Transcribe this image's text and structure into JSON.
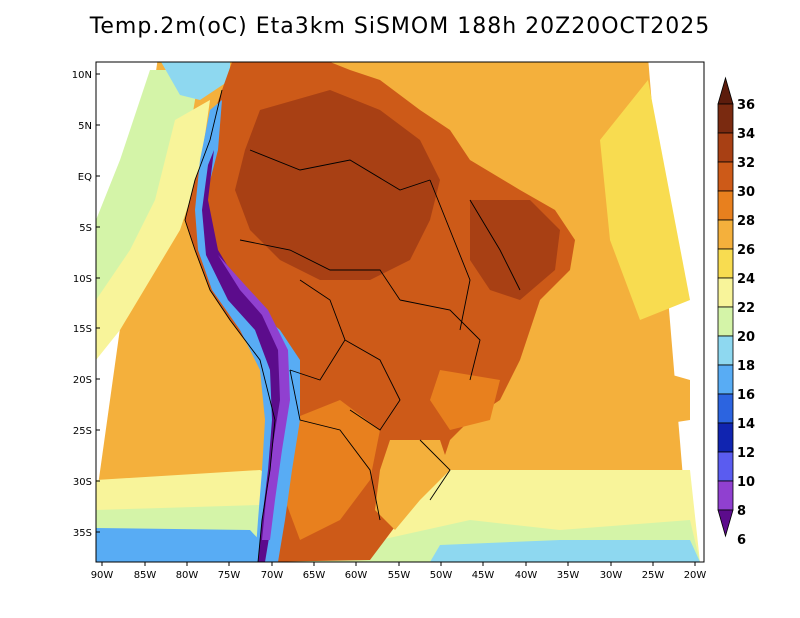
{
  "title": "Temp.2m(oC) Eta3km SiSMOM 188h 20Z20OCT2025",
  "axes": {
    "lat_labels": [
      "10N",
      "5N",
      "EQ",
      "5S",
      "10S",
      "15S",
      "20S",
      "25S",
      "30S",
      "35S"
    ],
    "lon_labels": [
      "90W",
      "85W",
      "80W",
      "75W",
      "70W",
      "65W",
      "60W",
      "55W",
      "50W",
      "45W",
      "40W",
      "35W",
      "30W",
      "25W",
      "20W"
    ]
  },
  "colorbar": {
    "labels": [
      "36",
      "34",
      "32",
      "30",
      "28",
      "26",
      "24",
      "22",
      "20",
      "18",
      "16",
      "14",
      "12",
      "10",
      "8",
      "6"
    ],
    "colors": [
      "#5c1c0c",
      "#7a2a10",
      "#a84014",
      "#cd5a18",
      "#e8801e",
      "#f4b03c",
      "#f8dc50",
      "#f8f49a",
      "#d4f4a8",
      "#8ed8f0",
      "#58acf4",
      "#2c64e0",
      "#1024b0",
      "#5a5cf0",
      "#9040d0",
      "#5c0c8c"
    ]
  },
  "colors": {
    "ocean_warm": "#f4b03c",
    "ocean_mid": "#f8dc50",
    "ocean_cool": "#f8f49a",
    "land_hot": "#a84014",
    "land_mid": "#cd5a18",
    "andes_cold": "#5c0c8c"
  }
}
